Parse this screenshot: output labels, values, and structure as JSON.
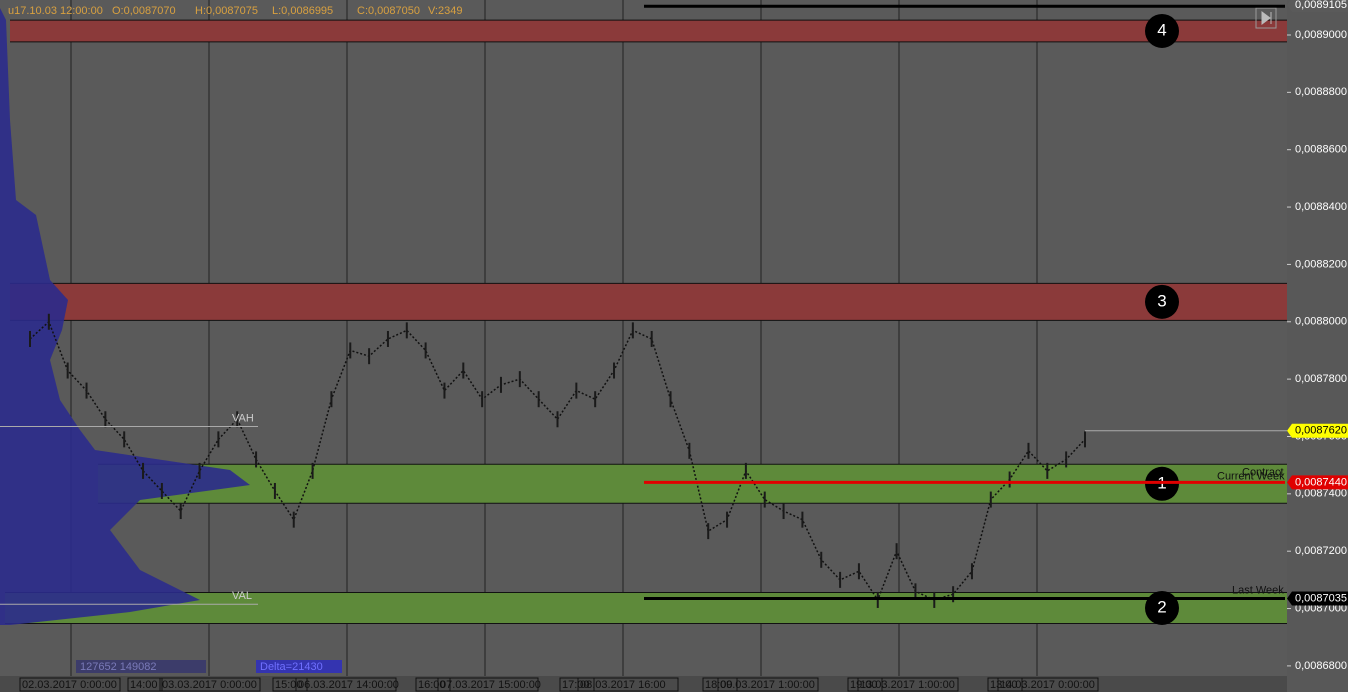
{
  "header": {
    "fields": [
      "u17.10.03 12:00:00",
      "O:0,0087070",
      "H:0,0087075",
      "L:0,0086995",
      "C:0,0087050",
      "V:2349"
    ]
  },
  "chart_data": {
    "type": "line",
    "color": "#111111",
    "values": [
      0.008794,
      0.0088,
      0.008783,
      0.008776,
      0.008766,
      0.008759,
      0.008748,
      0.008741,
      0.008734,
      0.008748,
      0.008759,
      0.008766,
      0.008752,
      0.008741,
      0.008731,
      0.008748,
      0.008773,
      0.00879,
      0.008788,
      0.008794,
      0.008797,
      0.00879,
      0.008776,
      0.008783,
      0.008773,
      0.008778,
      0.00878,
      0.008773,
      0.008766,
      0.008776,
      0.008773,
      0.008783,
      0.008797,
      0.008794,
      0.008773,
      0.008755,
      0.008727,
      0.008731,
      0.008748,
      0.008738,
      0.008734,
      0.008731,
      0.008717,
      0.00871,
      0.008713,
      0.008703,
      0.00872,
      0.008706,
      0.008703,
      0.008705,
      0.008713,
      0.008738,
      0.008745,
      0.008755,
      0.008748,
      0.008752,
      0.008759
    ],
    "ylim": [
      0.0086709,
      0.0089122
    ],
    "yticks": [
      {
        "value": 0.0089,
        "label": "0,0089000"
      },
      {
        "value": 0.00888,
        "label": "0,0088800"
      },
      {
        "value": 0.00886,
        "label": "0,0088600"
      },
      {
        "value": 0.00884,
        "label": "0,0088400"
      },
      {
        "value": 0.00882,
        "label": "0,0088200"
      },
      {
        "value": 0.0088,
        "label": "0,0088000"
      },
      {
        "value": 0.00878,
        "label": "0,0087800"
      },
      {
        "value": 0.00876,
        "label": "0,0087600"
      },
      {
        "value": 0.00874,
        "label": "0,0087400"
      },
      {
        "value": 0.00872,
        "label": "0,0087200"
      },
      {
        "value": 0.0087,
        "label": "0,0087000"
      },
      {
        "value": 0.00868,
        "label": "0,0086800"
      }
    ],
    "price_tags": [
      {
        "value": 0.0089105,
        "label": "0,0089105",
        "color": "#5a5a5a"
      },
      {
        "value": 0.008762,
        "label": "0,0087620",
        "color": "#ffff00"
      },
      {
        "value": 0.008744,
        "label": "0,0087440",
        "color": "#e00000"
      },
      {
        "value": 0.0087035,
        "label": "0,0087035",
        "color": "#000000"
      }
    ],
    "zones": [
      {
        "label": "4",
        "low": 0.0088976,
        "high": 0.0089052,
        "color": "#8b3a3a"
      },
      {
        "label": "3",
        "low": 0.0088005,
        "high": 0.0088134,
        "color": "#8b3a3a"
      },
      {
        "label": "1",
        "low": 0.0087367,
        "high": 0.0087503,
        "color": "#5e8a3a"
      },
      {
        "label": "2",
        "low": 0.0086948,
        "high": 0.0087056,
        "color": "#5e8a3a"
      }
    ],
    "levels": [
      {
        "value": 0.00891,
        "color": "#000000"
      },
      {
        "value": 0.008744,
        "color": "#e00000"
      },
      {
        "value": 0.0087035,
        "color": "#000000"
      }
    ],
    "annotations": [
      "VAH",
      "VAL",
      "Current Week",
      "Contract",
      "Last Week"
    ],
    "x_labels": [
      "02.03.2017 0:00:00",
      "14:00",
      "03.03.2017 0:00:00",
      "15:00",
      "06.03.2017 14:00:00",
      "16:00",
      "07.03.2017 15:00:00",
      "17:00",
      "08.03.2017 16:00",
      "18:00",
      "09.03.2017 1:00:00",
      "19:00",
      "13.03.2017 1:00:00",
      "13:00",
      "14.03.2017 0:00:00"
    ]
  },
  "footer": {
    "volumes": "127652 149082",
    "delta": "Delta=21430"
  }
}
